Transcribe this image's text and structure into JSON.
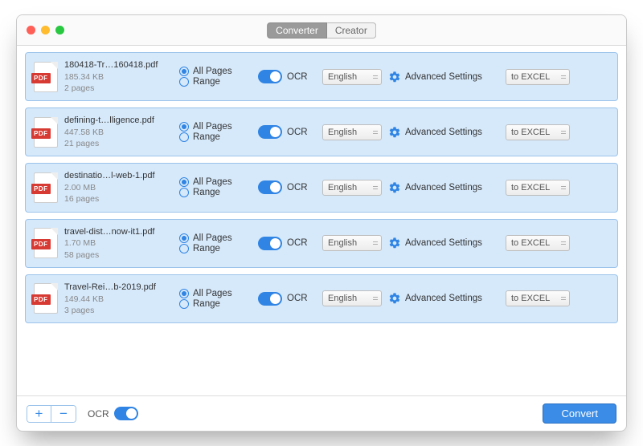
{
  "colors": {
    "accent": "#2f84e4",
    "row_bg": "#d6e9fb",
    "row_border": "#9cc3ea",
    "traffic_close": "#ff5f57",
    "traffic_min": "#febc2e",
    "traffic_max": "#28c840"
  },
  "tabs": {
    "converter": "Converter",
    "creator": "Creator",
    "active": "converter"
  },
  "labels": {
    "all_pages": "All Pages",
    "range": "Range",
    "ocr": "OCR",
    "advanced": "Advanced Settings",
    "footer_ocr": "OCR",
    "convert": "Convert",
    "pdf_badge": "PDF"
  },
  "defaults": {
    "language": "English",
    "output_format": "to EXCEL"
  },
  "files": [
    {
      "name": "180418-Tr…160418.pdf",
      "size": "185.34 KB",
      "pages": "2 pages"
    },
    {
      "name": "defining-t…lligence.pdf",
      "size": "447.58 KB",
      "pages": "21 pages"
    },
    {
      "name": "destinatio…l-web-1.pdf",
      "size": "2.00 MB",
      "pages": "16 pages"
    },
    {
      "name": "travel-dist…now-it1.pdf",
      "size": "1.70 MB",
      "pages": "58 pages"
    },
    {
      "name": "Travel-Rei…b-2019.pdf",
      "size": "149.44 KB",
      "pages": "3 pages"
    }
  ]
}
